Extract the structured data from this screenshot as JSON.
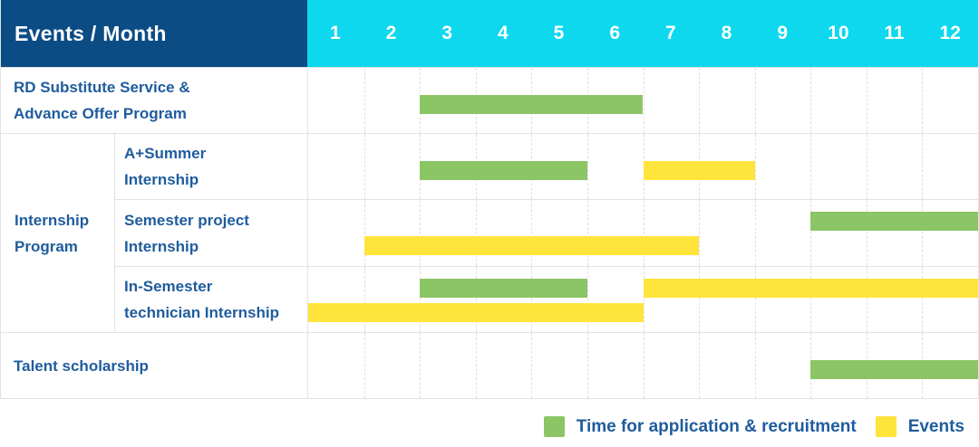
{
  "colors": {
    "header_bg": "#0B4C85",
    "month_header_bg": "#0ED8EE",
    "header_text": "#FFFFFF",
    "label_text": "#1F5C9D",
    "green": "#8BC566",
    "yellow": "#FFE43C",
    "grid_line": "#E2E2E2"
  },
  "chart_data": {
    "type": "gantt",
    "title": "Events / Month",
    "months": [
      "1",
      "2",
      "3",
      "4",
      "5",
      "6",
      "7",
      "8",
      "9",
      "10",
      "11",
      "12"
    ],
    "x_range": [
      1,
      12
    ],
    "grid": "dashed-vertical-month-lines",
    "legend_position": "bottom-right",
    "legend": [
      {
        "key": "application",
        "label": "Time for application & recruitment",
        "color": "#8BC566"
      },
      {
        "key": "events",
        "label": "Events",
        "color": "#FFE43C"
      }
    ],
    "group": {
      "label_lines": [
        "Internship",
        "Program"
      ]
    },
    "rows": [
      {
        "sub": false,
        "label": "RD Substitute Service & Advance Offer Program",
        "label_lines": [
          "RD Substitute Service &",
          "Advance Offer Program"
        ],
        "bars": [
          {
            "type": "application",
            "start_month": 3,
            "end_month": 6,
            "lane": "mid"
          }
        ]
      },
      {
        "sub": true,
        "label": "A+Summer Internship",
        "label_lines": [
          "A+Summer",
          "Internship"
        ],
        "bars": [
          {
            "type": "application",
            "start_month": 3,
            "end_month": 5,
            "lane": "mid"
          },
          {
            "type": "events",
            "start_month": 7,
            "end_month": 8,
            "lane": "mid"
          }
        ]
      },
      {
        "sub": true,
        "label": "Semester project Internship",
        "label_lines": [
          "Semester project",
          "Internship"
        ],
        "bars": [
          {
            "type": "application",
            "start_month": 10,
            "end_month": 12,
            "lane": "top"
          },
          {
            "type": "events",
            "start_month": 2,
            "end_month": 7,
            "lane": "bottom"
          }
        ]
      },
      {
        "sub": true,
        "label": "In-Semester technician Internship",
        "label_lines": [
          "In-Semester",
          "technician Internship"
        ],
        "bars": [
          {
            "type": "application",
            "start_month": 3,
            "end_month": 5,
            "lane": "top"
          },
          {
            "type": "events",
            "start_month": 7,
            "end_month": 12,
            "lane": "top"
          },
          {
            "type": "events",
            "start_month": 1,
            "end_month": 6,
            "lane": "bottom"
          }
        ]
      },
      {
        "sub": false,
        "label": "Talent scholarship",
        "label_lines": [
          "Talent scholarship"
        ],
        "bars": [
          {
            "type": "application",
            "start_month": 10,
            "end_month": 12,
            "lane": "mid"
          }
        ]
      }
    ]
  }
}
